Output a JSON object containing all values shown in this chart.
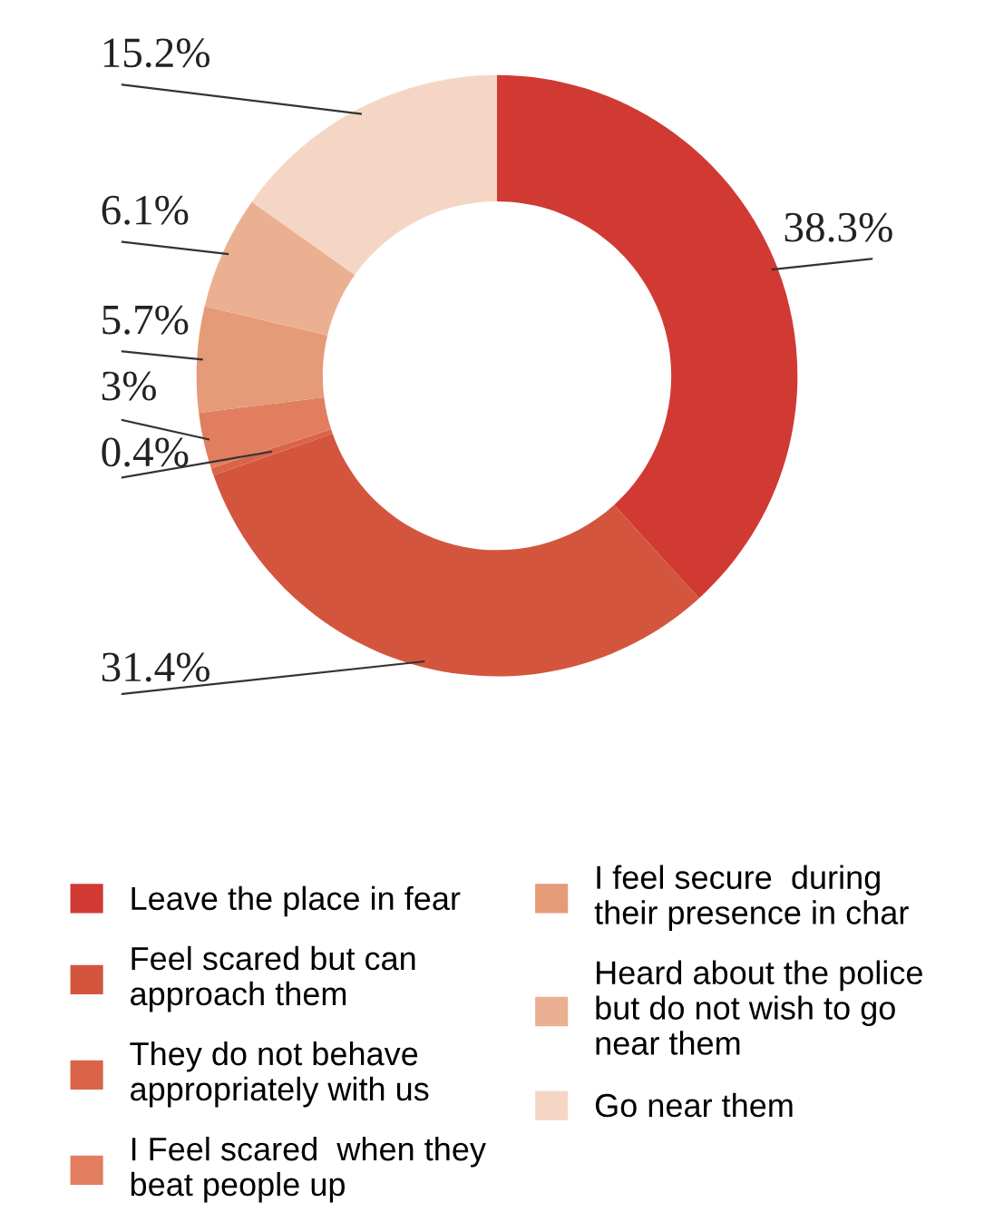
{
  "chart_data": {
    "type": "donut",
    "categories": [
      "Leave the place in fear",
      "Feel scared but can\napproach them",
      "They do not behave\nappropriately with us",
      "I Feel scared  when they\nbeat people up",
      "I feel secure  during\ntheir presence in char",
      "Heard about the police\nbut do not wish to go\nnear them",
      "Go near them"
    ],
    "values": [
      38.3,
      31.4,
      0.4,
      3,
      5.7,
      6.1,
      15.2
    ],
    "colors": [
      "#d03a33",
      "#d4553d",
      "#da6448",
      "#e07e5f",
      "#e59a78",
      "#ebb092",
      "#f5d6c5"
    ],
    "value_labels": [
      "38.3%",
      "31.4%",
      "0.4%",
      "3%",
      "5.7%",
      "6.1%",
      "15.2%"
    ],
    "legend": "bottom"
  }
}
